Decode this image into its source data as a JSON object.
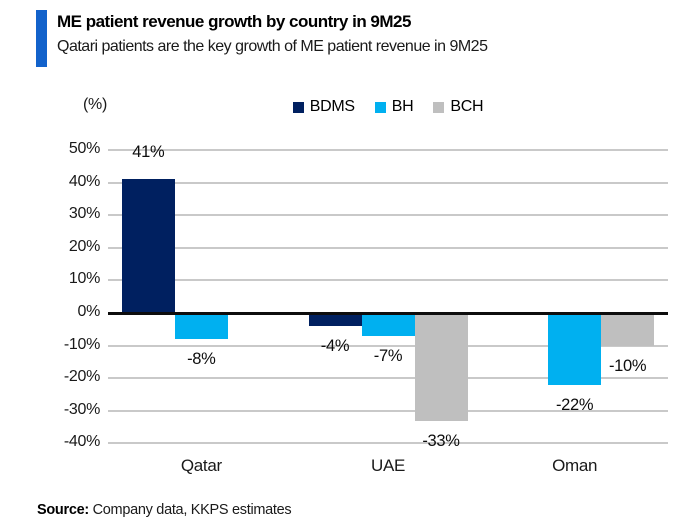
{
  "header": {
    "title": "ME patient revenue growth by country in 9M25",
    "subtitle": "Qatari patients are the key growth of ME patient revenue in 9M25",
    "accent_color": "#1262cb"
  },
  "chart_data": {
    "type": "bar",
    "title": "ME patient revenue growth by country in 9M25",
    "unit_label": "(%)",
    "categories": [
      "Qatar",
      "UAE",
      "Oman"
    ],
    "series": [
      {
        "name": "BDMS",
        "color": "#002060",
        "values": [
          41,
          -4,
          null
        ]
      },
      {
        "name": "BH",
        "color": "#00b0f0",
        "values": [
          -8,
          -7,
          -22
        ]
      },
      {
        "name": "BCH",
        "color": "#bfbfbf",
        "values": [
          null,
          -33,
          -10
        ]
      }
    ],
    "ylim": [
      -40,
      50
    ],
    "ytick_step": 10,
    "ytick_labels": [
      "50%",
      "40%",
      "30%",
      "20%",
      "10%",
      "0%",
      "-10%",
      "-20%",
      "-30%",
      "-40%"
    ],
    "data_label_suffix": "%",
    "grid": true,
    "gridline_color": "#c9c9c9",
    "axis_line_color": "#0d0d0d",
    "legend_position": "top"
  },
  "source": {
    "label": "Source:",
    "text": " Company data, KKPS estimates"
  }
}
